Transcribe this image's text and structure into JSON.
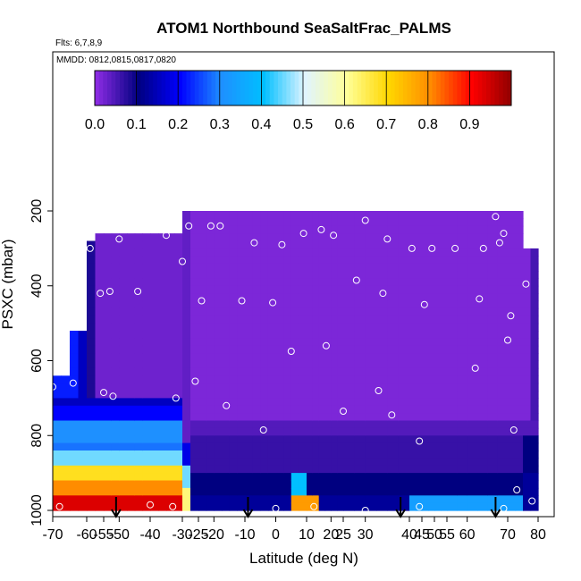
{
  "chart_data": {
    "type": "heatmap",
    "title": "ATOM1 Northbound SeaSaltFrac_PALMS",
    "subtitle_flights": "Flts: 6,7,8,9",
    "subtitle_dates": "MMDD: 0812,0815,0817,0820",
    "xlabel": "Latitude (deg N)",
    "ylabel": "PSXC (mbar)",
    "xlim": [
      -70,
      80
    ],
    "ylim": [
      1000,
      0
    ],
    "x_ticks": [
      "-70",
      "-55",
      "-40",
      "-25",
      "-10",
      "10",
      "25",
      "40",
      "55",
      "70"
    ],
    "x_ticks_minor": [
      "-60",
      "-50",
      "-30",
      "-20",
      "0",
      "20",
      "30",
      "45",
      "50",
      "60",
      "80"
    ],
    "x_tick_values": [
      -70,
      -55,
      -40,
      -25,
      -10,
      10,
      25,
      40,
      55,
      70
    ],
    "x_tick_minor_values": [
      -60,
      -50,
      -30,
      -20,
      0,
      20,
      30,
      45,
      50,
      60,
      80
    ],
    "y_ticks": [
      "200",
      "400",
      "600",
      "800",
      "1000"
    ],
    "y_tick_values": [
      200,
      400,
      600,
      800,
      1000
    ],
    "colorbar": {
      "ticks": [
        "0.0",
        "0.1",
        "0.2",
        "0.3",
        "0.4",
        "0.5",
        "0.6",
        "0.7",
        "0.8",
        "0.9"
      ],
      "range": [
        0,
        1
      ],
      "colors": [
        "#8a2be2",
        "#000080",
        "#0000ff",
        "#1e90ff",
        "#00bfff",
        "#e0f4ff",
        "#ffff99",
        "#ffd700",
        "#ff8c00",
        "#ff0000",
        "#8b0000"
      ]
    },
    "arrows_latitude": [
      -51,
      -9,
      38,
      67
    ],
    "grid": false,
    "sample_points": [
      {
        "lat": -68,
        "p": 990
      },
      {
        "lat": -64,
        "p": 660
      },
      {
        "lat": -59,
        "p": 300
      },
      {
        "lat": -56,
        "p": 420
      },
      {
        "lat": -53,
        "p": 415
      },
      {
        "lat": -50,
        "p": 275
      },
      {
        "lat": -55,
        "p": 685
      },
      {
        "lat": -52,
        "p": 695
      },
      {
        "lat": -44,
        "p": 415
      },
      {
        "lat": -35,
        "p": 265
      },
      {
        "lat": -33,
        "p": 990
      },
      {
        "lat": -32,
        "p": 700
      },
      {
        "lat": -30,
        "p": 335
      },
      {
        "lat": -28,
        "p": 240
      },
      {
        "lat": -26,
        "p": 655
      },
      {
        "lat": -24,
        "p": 440
      },
      {
        "lat": -21,
        "p": 240
      },
      {
        "lat": -18,
        "p": 240
      },
      {
        "lat": -16,
        "p": 720
      },
      {
        "lat": -11,
        "p": 440
      },
      {
        "lat": -7,
        "p": 285
      },
      {
        "lat": -4,
        "p": 785
      },
      {
        "lat": -1,
        "p": 445
      },
      {
        "lat": 2,
        "p": 290
      },
      {
        "lat": 5,
        "p": 575
      },
      {
        "lat": 9,
        "p": 260
      },
      {
        "lat": 13,
        "p": 990
      },
      {
        "lat": 16,
        "p": 250
      },
      {
        "lat": 18,
        "p": 560
      },
      {
        "lat": 21,
        "p": 265
      },
      {
        "lat": 25,
        "p": 735
      },
      {
        "lat": 28,
        "p": 385
      },
      {
        "lat": 30,
        "p": 225
      },
      {
        "lat": 33,
        "p": 680
      },
      {
        "lat": 34,
        "p": 420
      },
      {
        "lat": 35,
        "p": 275
      },
      {
        "lat": 36,
        "p": 745
      },
      {
        "lat": 41,
        "p": 300
      },
      {
        "lat": 44,
        "p": 815
      },
      {
        "lat": 46,
        "p": 450
      },
      {
        "lat": 49,
        "p": 300
      },
      {
        "lat": 57,
        "p": 300
      },
      {
        "lat": 62,
        "p": 620
      },
      {
        "lat": 63,
        "p": 435
      },
      {
        "lat": 64,
        "p": 300
      },
      {
        "lat": 67,
        "p": 215
      },
      {
        "lat": 68,
        "p": 285
      },
      {
        "lat": 69,
        "p": 260
      },
      {
        "lat": 70,
        "p": 545
      },
      {
        "lat": 71,
        "p": 480
      },
      {
        "lat": 72,
        "p": 785
      },
      {
        "lat": 73,
        "p": 945
      },
      {
        "lat": 76,
        "p": 395
      },
      {
        "lat": 78,
        "p": 975
      },
      {
        "lat": -70,
        "p": 670
      },
      {
        "lat": 69,
        "p": 995
      },
      {
        "lat": -40,
        "p": 985
      },
      {
        "lat": 0,
        "p": 995
      },
      {
        "lat": 44,
        "p": 990
      },
      {
        "lat": 30,
        "p": 1000
      }
    ]
  }
}
